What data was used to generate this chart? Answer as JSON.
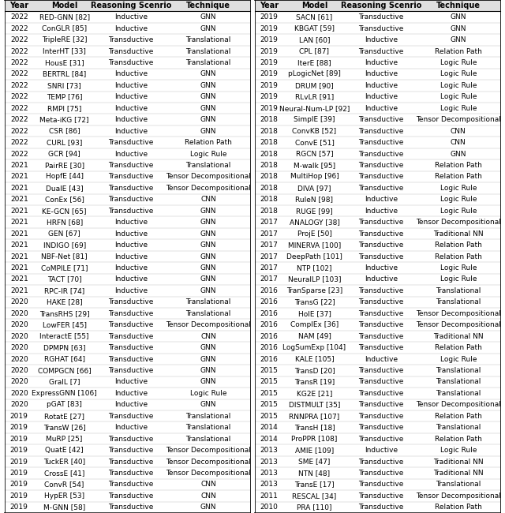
{
  "left_headers": [
    "Year",
    "Model",
    "Reasoning Scenrio",
    "Technique"
  ],
  "right_headers": [
    "Year",
    "Model",
    "Reasoning Scenrio",
    "Technique"
  ],
  "left_rows": [
    [
      "2022",
      "RED-GNN [82]",
      "Inductive",
      "GNN"
    ],
    [
      "2022",
      "ConGLR [85]",
      "Inductive",
      "GNN"
    ],
    [
      "2022",
      "TripleRE [32]",
      "Transductive",
      "Translational"
    ],
    [
      "2022",
      "InterHT [33]",
      "Transductive",
      "Translational"
    ],
    [
      "2022",
      "HousE [31]",
      "Transductive",
      "Translational"
    ],
    [
      "2022",
      "BERTRL [84]",
      "Inductive",
      "GNN"
    ],
    [
      "2022",
      "SNRI [73]",
      "Inductive",
      "GNN"
    ],
    [
      "2022",
      "TEMP [76]",
      "Inductive",
      "GNN"
    ],
    [
      "2022",
      "RMPI [75]",
      "Inductive",
      "GNN"
    ],
    [
      "2022",
      "Meta-iKG [72]",
      "Inductive",
      "GNN"
    ],
    [
      "2022",
      "CSR [86]",
      "Inductive",
      "GNN"
    ],
    [
      "2022",
      "CURL [93]",
      "Transductive",
      "Relation Path"
    ],
    [
      "2022",
      "GCR [94]",
      "Inductive",
      "Logic Rule"
    ],
    [
      "2021",
      "PairRE [30]",
      "Transductive",
      "Translational"
    ],
    [
      "2021",
      "HopfE [44]",
      "Transductive",
      "Tensor Decompositional"
    ],
    [
      "2021",
      "DualE [43]",
      "Transductive",
      "Tensor Decompositional"
    ],
    [
      "2021",
      "ConEx [56]",
      "Transductive",
      "CNN"
    ],
    [
      "2021",
      "KE-GCN [65]",
      "Transductive",
      "GNN"
    ],
    [
      "2021",
      "HRFN [68]",
      "Inductive",
      "GNN"
    ],
    [
      "2021",
      "GEN [67]",
      "Inductive",
      "GNN"
    ],
    [
      "2021",
      "INDIGO [69]",
      "Inductive",
      "GNN"
    ],
    [
      "2021",
      "NBF-Net [81]",
      "Inductive",
      "GNN"
    ],
    [
      "2021",
      "CoMPILE [71]",
      "Inductive",
      "GNN"
    ],
    [
      "2021",
      "TACT [70]",
      "Inductive",
      "GNN"
    ],
    [
      "2021",
      "RPC-IR [74]",
      "Inductive",
      "GNN"
    ],
    [
      "2020",
      "HAKE [28]",
      "Transductive",
      "Translational"
    ],
    [
      "2020",
      "TransRHS [29]",
      "Transductive",
      "Translational"
    ],
    [
      "2020",
      "LowFER [45]",
      "Transductive",
      "Tensor Decompositional"
    ],
    [
      "2020",
      "InteractE [55]",
      "Transductive",
      "CNN"
    ],
    [
      "2020",
      "DPMPN [63]",
      "Transductive",
      "GNN"
    ],
    [
      "2020",
      "RGHAT [64]",
      "Transductive",
      "GNN"
    ],
    [
      "2020",
      "COMPGCN [66]",
      "Transductive",
      "GNN"
    ],
    [
      "2020",
      "GraIL [7]",
      "Inductive",
      "GNN"
    ],
    [
      "2020",
      "ExpressGNN [106]",
      "Inductive",
      "Logic Rule"
    ],
    [
      "2020",
      "pGAT [83]",
      "Inductive",
      "GNN"
    ],
    [
      "2019",
      "RotatE [27]",
      "Transductive",
      "Translational"
    ],
    [
      "2019",
      "TransW [26]",
      "Inductive",
      "Translational"
    ],
    [
      "2019",
      "MuRP [25]",
      "Transductive",
      "Translational"
    ],
    [
      "2019",
      "QuatE [42]",
      "Transductive",
      "Tensor Decompositional"
    ],
    [
      "2019",
      "TuckER [40]",
      "Transductive",
      "Tensor Decompositional"
    ],
    [
      "2019",
      "CrossE [41]",
      "Transductive",
      "Tensor Decompositional"
    ],
    [
      "2019",
      "ConvR [54]",
      "Transductive",
      "CNN"
    ],
    [
      "2019",
      "HypER [53]",
      "Transductive",
      "CNN"
    ],
    [
      "2019",
      "M-GNN [58]",
      "Transductive",
      "GNN"
    ]
  ],
  "right_rows": [
    [
      "2019",
      "SACN [61]",
      "Transductive",
      "GNN"
    ],
    [
      "2019",
      "KBGAT [59]",
      "Transductive",
      "GNN"
    ],
    [
      "2019",
      "LAN [60]",
      "Inductive",
      "GNN"
    ],
    [
      "2019",
      "CPL [87]",
      "Transductive",
      "Relation Path"
    ],
    [
      "2019",
      "IterE [88]",
      "Inductive",
      "Logic Rule"
    ],
    [
      "2019",
      "pLogicNet [89]",
      "Inductive",
      "Logic Rule"
    ],
    [
      "2019",
      "DRUM [90]",
      "Inductive",
      "Logic Rule"
    ],
    [
      "2019",
      "RLvLR [91]",
      "Inductive",
      "Logic Rule"
    ],
    [
      "2019",
      "Neural-Num-LP [92]",
      "Inductive",
      "Logic Rule"
    ],
    [
      "2018",
      "SimplE [39]",
      "Transductive",
      "Tensor Decompositional"
    ],
    [
      "2018",
      "ConvKB [52]",
      "Transductive",
      "CNN"
    ],
    [
      "2018",
      "ConvE [51]",
      "Transductive",
      "CNN"
    ],
    [
      "2018",
      "RGCN [57]",
      "Transductive",
      "GNN"
    ],
    [
      "2018",
      "M-walk [95]",
      "Transductive",
      "Relation Path"
    ],
    [
      "2018",
      "MultiHop [96]",
      "Transductive",
      "Relation Path"
    ],
    [
      "2018",
      "DIVA [97]",
      "Transductive",
      "Logic Rule"
    ],
    [
      "2018",
      "RuleN [98]",
      "Inductive",
      "Logic Rule"
    ],
    [
      "2018",
      "RUGE [99]",
      "Inductive",
      "Logic Rule"
    ],
    [
      "2017",
      "ANALOGY [38]",
      "Transductive",
      "Tensor Decompositional"
    ],
    [
      "2017",
      "ProjE [50]",
      "Transductive",
      "Traditional NN"
    ],
    [
      "2017",
      "MINERVA [100]",
      "Transductive",
      "Relation Path"
    ],
    [
      "2017",
      "DeepPath [101]",
      "Transductive",
      "Relation Path"
    ],
    [
      "2017",
      "NTP [102]",
      "Inductive",
      "Logic Rule"
    ],
    [
      "2017",
      "NeuralLP [103]",
      "Inductive",
      "Logic Rule"
    ],
    [
      "2016",
      "TranSparse [23]",
      "Transductive",
      "Translational"
    ],
    [
      "2016",
      "TransG [22]",
      "Transductive",
      "Translational"
    ],
    [
      "2016",
      "HolE [37]",
      "Transductive",
      "Tensor Decompositional"
    ],
    [
      "2016",
      "ComplEx [36]",
      "Transductive",
      "Tensor Decompositional"
    ],
    [
      "2016",
      "NAM [49]",
      "Transductive",
      "Traditional NN"
    ],
    [
      "2016",
      "LogSumExp [104]",
      "Transductive",
      "Relation Path"
    ],
    [
      "2016",
      "KALE [105]",
      "Inductive",
      "Logic Rule"
    ],
    [
      "2015",
      "TransD [20]",
      "Transductive",
      "Translational"
    ],
    [
      "2015",
      "TransR [19]",
      "Transductive",
      "Translational"
    ],
    [
      "2015",
      "KG2E [21]",
      "Transductive",
      "Translational"
    ],
    [
      "2015",
      "DISTMULT [35]",
      "Transductive",
      "Tensor Decompositional"
    ],
    [
      "2015",
      "RNNPRA [107]",
      "Transductive",
      "Relation Path"
    ],
    [
      "2014",
      "TransH [18]",
      "Transductive",
      "Translational"
    ],
    [
      "2014",
      "ProPPR [108]",
      "Transductive",
      "Relation Path"
    ],
    [
      "2013",
      "AMIE [109]",
      "Inductive",
      "Logic Rule"
    ],
    [
      "2013",
      "SME [47]",
      "Transductive",
      "Traditional NN"
    ],
    [
      "2013",
      "NTN [48]",
      "Transductive",
      "Traditional NN"
    ],
    [
      "2013",
      "TransE [17]",
      "Transductive",
      "Translational"
    ],
    [
      "2011",
      "RESCAL [34]",
      "Transductive",
      "Tensor Decompositional"
    ],
    [
      "2010",
      "PRA [110]",
      "Transductive",
      "Relation Path"
    ]
  ],
  "font_size": 6.5,
  "header_font_size": 7.0,
  "bg_color": "#ffffff",
  "text_color": "#000000",
  "header_bg": "#e0e0e0"
}
